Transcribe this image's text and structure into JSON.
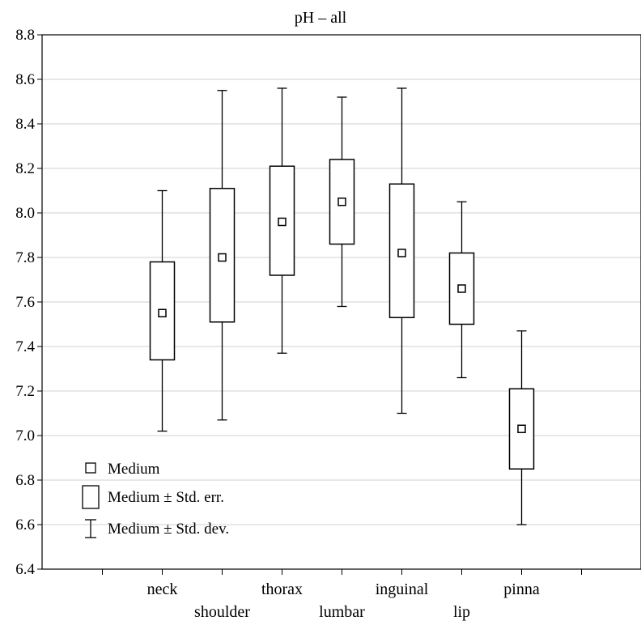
{
  "chart_data": {
    "type": "box",
    "title": "pH – all",
    "xlabel": "",
    "ylabel": "",
    "ylim": [
      6.4,
      8.8
    ],
    "yticks": [
      "6.4",
      "6.6",
      "6.8",
      "7.0",
      "7.2",
      "7.4",
      "7.6",
      "7.8",
      "8.0",
      "8.2",
      "8.4",
      "8.6",
      "8.8"
    ],
    "grid": true,
    "legend_position": "bottom-left",
    "categories": [
      "neck",
      "shoulder",
      "thorax",
      "lumbar",
      "inguinal",
      "lip",
      "pinna"
    ],
    "boxes": [
      {
        "category": "neck",
        "median": 7.55,
        "se_low": 7.34,
        "se_high": 7.78,
        "sd_low": 7.02,
        "sd_high": 8.1
      },
      {
        "category": "shoulder",
        "median": 7.8,
        "se_low": 7.51,
        "se_high": 8.11,
        "sd_low": 7.07,
        "sd_high": 8.55
      },
      {
        "category": "thorax",
        "median": 7.96,
        "se_low": 7.72,
        "se_high": 8.21,
        "sd_low": 7.37,
        "sd_high": 8.56
      },
      {
        "category": "lumbar",
        "median": 8.05,
        "se_low": 7.86,
        "se_high": 8.24,
        "sd_low": 7.58,
        "sd_high": 8.52
      },
      {
        "category": "inguinal",
        "median": 7.82,
        "se_low": 7.53,
        "se_high": 8.13,
        "sd_low": 7.1,
        "sd_high": 8.56
      },
      {
        "category": "lip",
        "median": 7.66,
        "se_low": 7.5,
        "se_high": 7.82,
        "sd_low": 7.26,
        "sd_high": 8.05
      },
      {
        "category": "pinna",
        "median": 7.03,
        "se_low": 6.85,
        "se_high": 7.21,
        "sd_low": 6.6,
        "sd_high": 7.47
      }
    ],
    "legend": [
      {
        "symbol": "point",
        "label": "Medium"
      },
      {
        "symbol": "box",
        "label": "Medium ± Std. err."
      },
      {
        "symbol": "whisker",
        "label": "Medium ± Std. dev."
      }
    ]
  }
}
